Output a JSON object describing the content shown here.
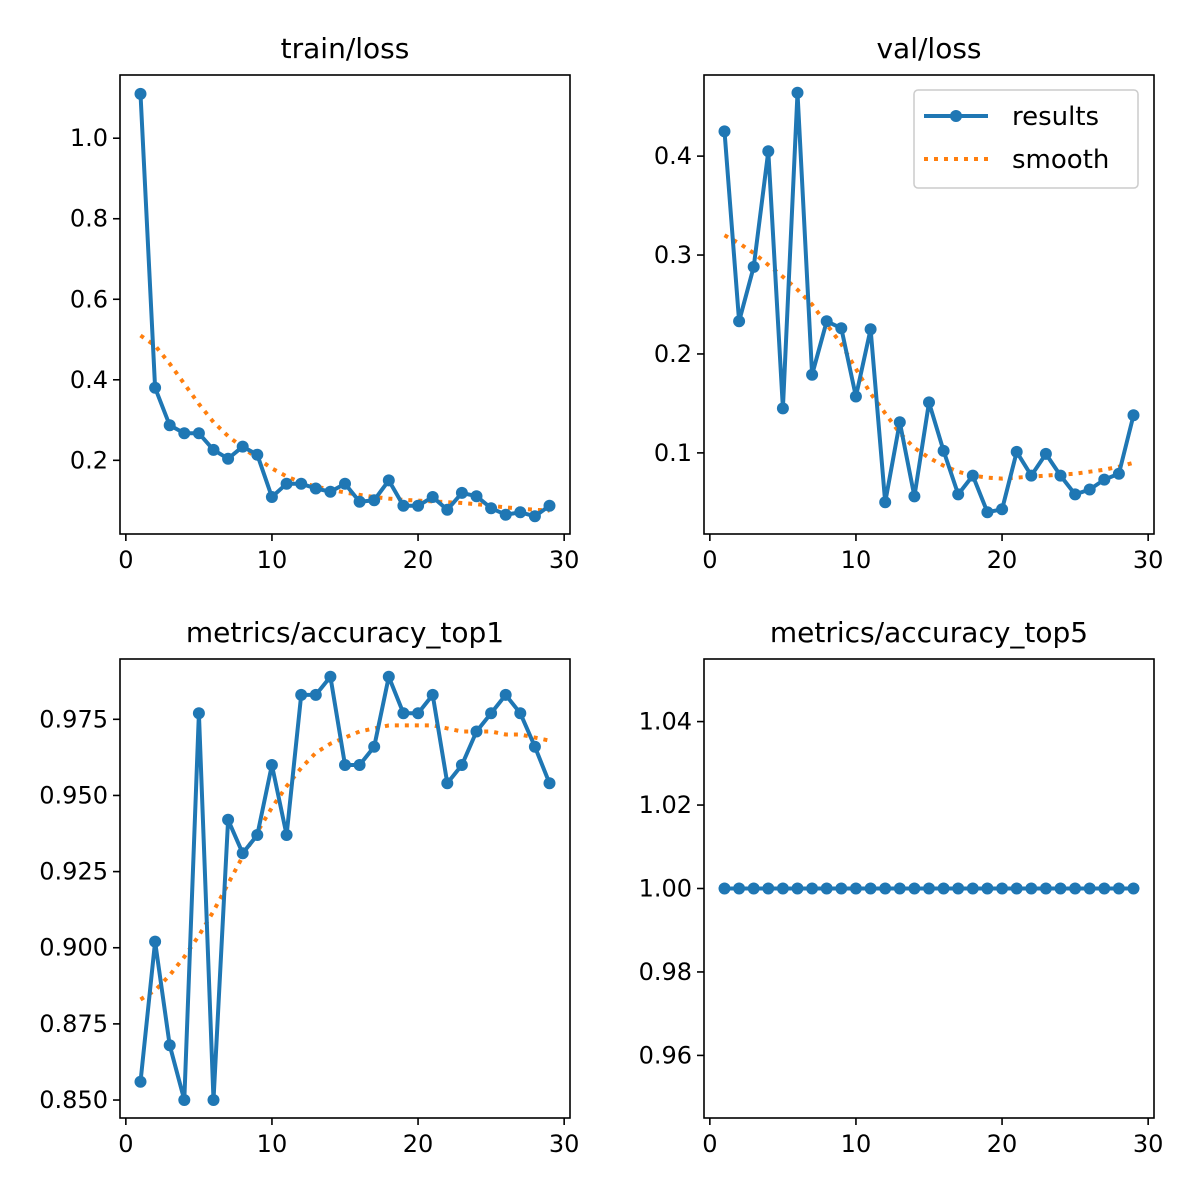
{
  "figure": {
    "colors": {
      "results": "#1f77b4",
      "smooth": "#ff7f0e",
      "axes": "#000000",
      "legend_frame": "#cccccc",
      "background": "#ffffff"
    }
  },
  "legend": {
    "location": "upper right of val/loss",
    "results_label": "results",
    "smooth_label": "smooth"
  },
  "chart_data": [
    {
      "type": "line",
      "title": "train/loss",
      "xlabel": "",
      "ylabel": "",
      "xlim": [
        -0.4,
        30.4
      ],
      "ylim": [
        0.017,
        1.157
      ],
      "xticks": [
        0,
        10,
        20,
        30
      ],
      "xtick_labels": [
        "0",
        "10",
        "20",
        "30"
      ],
      "yticks": [
        0.2,
        0.4,
        0.6,
        0.8,
        1.0
      ],
      "ytick_labels": [
        "0.2",
        "0.4",
        "0.6",
        "0.8",
        "1.0"
      ],
      "x": [
        1,
        2,
        3,
        4,
        5,
        6,
        7,
        8,
        9,
        10,
        11,
        12,
        13,
        14,
        15,
        16,
        17,
        18,
        19,
        20,
        21,
        22,
        23,
        24,
        25,
        26,
        27,
        28,
        29
      ],
      "series": [
        {
          "name": "results",
          "marker": "circle",
          "style": "solid",
          "values": [
            1.11,
            0.38,
            0.287,
            0.267,
            0.267,
            0.226,
            0.204,
            0.234,
            0.214,
            0.109,
            0.142,
            0.142,
            0.13,
            0.122,
            0.142,
            0.097,
            0.101,
            0.15,
            0.087,
            0.087,
            0.109,
            0.077,
            0.119,
            0.111,
            0.081,
            0.065,
            0.071,
            0.061,
            0.087
          ]
        },
        {
          "name": "smooth",
          "marker": "none",
          "style": "dotted",
          "values": [
            0.51,
            0.485,
            0.44,
            0.39,
            0.34,
            0.295,
            0.26,
            0.232,
            0.205,
            0.18,
            0.16,
            0.145,
            0.135,
            0.127,
            0.12,
            0.114,
            0.109,
            0.105,
            0.102,
            0.1,
            0.098,
            0.096,
            0.094,
            0.091,
            0.087,
            0.083,
            0.08,
            0.077,
            0.075
          ]
        }
      ]
    },
    {
      "type": "line",
      "title": "val/loss",
      "xlabel": "",
      "ylabel": "",
      "xlim": [
        -0.4,
        30.4
      ],
      "ylim": [
        0.018,
        0.482
      ],
      "xticks": [
        0,
        10,
        20,
        30
      ],
      "xtick_labels": [
        "0",
        "10",
        "20",
        "30"
      ],
      "yticks": [
        0.1,
        0.2,
        0.3,
        0.4
      ],
      "ytick_labels": [
        "0.1",
        "0.2",
        "0.3",
        "0.4"
      ],
      "legend": true,
      "x": [
        1,
        2,
        3,
        4,
        5,
        6,
        7,
        8,
        9,
        10,
        11,
        12,
        13,
        14,
        15,
        16,
        17,
        18,
        19,
        20,
        21,
        22,
        23,
        24,
        25,
        26,
        27,
        28,
        29
      ],
      "series": [
        {
          "name": "results",
          "marker": "circle",
          "style": "solid",
          "values": [
            0.425,
            0.233,
            0.288,
            0.405,
            0.145,
            0.464,
            0.179,
            0.233,
            0.226,
            0.157,
            0.225,
            0.05,
            0.131,
            0.056,
            0.151,
            0.102,
            0.058,
            0.077,
            0.04,
            0.043,
            0.101,
            0.077,
            0.099,
            0.077,
            0.058,
            0.063,
            0.073,
            0.079,
            0.138
          ]
        },
        {
          "name": "smooth",
          "marker": "none",
          "style": "dotted",
          "values": [
            0.32,
            0.312,
            0.302,
            0.29,
            0.278,
            0.265,
            0.25,
            0.23,
            0.21,
            0.185,
            0.16,
            0.14,
            0.12,
            0.105,
            0.095,
            0.087,
            0.081,
            0.077,
            0.075,
            0.074,
            0.075,
            0.076,
            0.077,
            0.078,
            0.079,
            0.081,
            0.083,
            0.086,
            0.09
          ]
        }
      ]
    },
    {
      "type": "line",
      "title": "metrics/accuracy_top1",
      "xlabel": "",
      "ylabel": "",
      "xlim": [
        -0.4,
        30.4
      ],
      "ylim": [
        0.8441,
        0.9948
      ],
      "xticks": [
        0,
        10,
        20,
        30
      ],
      "xtick_labels": [
        "0",
        "10",
        "20",
        "30"
      ],
      "yticks": [
        0.85,
        0.875,
        0.9,
        0.925,
        0.95,
        0.975
      ],
      "ytick_labels": [
        "0.850",
        "0.875",
        "0.900",
        "0.925",
        "0.950",
        "0.975"
      ],
      "x": [
        1,
        2,
        3,
        4,
        5,
        6,
        7,
        8,
        9,
        10,
        11,
        12,
        13,
        14,
        15,
        16,
        17,
        18,
        19,
        20,
        21,
        22,
        23,
        24,
        25,
        26,
        27,
        28,
        29
      ],
      "series": [
        {
          "name": "results",
          "marker": "circle",
          "style": "solid",
          "values": [
            0.856,
            0.902,
            0.868,
            0.85,
            0.977,
            0.85,
            0.942,
            0.931,
            0.937,
            0.96,
            0.937,
            0.983,
            0.983,
            0.989,
            0.96,
            0.96,
            0.966,
            0.989,
            0.977,
            0.977,
            0.983,
            0.954,
            0.96,
            0.971,
            0.977,
            0.983,
            0.977,
            0.966,
            0.954
          ]
        },
        {
          "name": "smooth",
          "marker": "none",
          "style": "dotted",
          "values": [
            0.883,
            0.886,
            0.891,
            0.897,
            0.904,
            0.912,
            0.921,
            0.93,
            0.938,
            0.946,
            0.953,
            0.959,
            0.964,
            0.967,
            0.969,
            0.971,
            0.972,
            0.973,
            0.973,
            0.973,
            0.973,
            0.972,
            0.971,
            0.971,
            0.971,
            0.97,
            0.97,
            0.969,
            0.968
          ]
        }
      ]
    },
    {
      "type": "line",
      "title": "metrics/accuracy_top5",
      "xlabel": "",
      "ylabel": "",
      "xlim": [
        -0.4,
        30.4
      ],
      "ylim": [
        0.945,
        1.055
      ],
      "xticks": [
        0,
        10,
        20,
        30
      ],
      "xtick_labels": [
        "0",
        "10",
        "20",
        "30"
      ],
      "yticks": [
        0.96,
        0.98,
        1.0,
        1.02,
        1.04
      ],
      "ytick_labels": [
        "0.96",
        "0.98",
        "1.00",
        "1.02",
        "1.04"
      ],
      "x": [
        1,
        2,
        3,
        4,
        5,
        6,
        7,
        8,
        9,
        10,
        11,
        12,
        13,
        14,
        15,
        16,
        17,
        18,
        19,
        20,
        21,
        22,
        23,
        24,
        25,
        26,
        27,
        28,
        29
      ],
      "series": [
        {
          "name": "results",
          "marker": "circle",
          "style": "solid",
          "values": [
            1,
            1,
            1,
            1,
            1,
            1,
            1,
            1,
            1,
            1,
            1,
            1,
            1,
            1,
            1,
            1,
            1,
            1,
            1,
            1,
            1,
            1,
            1,
            1,
            1,
            1,
            1,
            1,
            1
          ]
        },
        {
          "name": "smooth",
          "marker": "none",
          "style": "dotted",
          "values": [
            1,
            1,
            1,
            1,
            1,
            1,
            1,
            1,
            1,
            1,
            1,
            1,
            1,
            1,
            1,
            1,
            1,
            1,
            1,
            1,
            1,
            1,
            1,
            1,
            1,
            1,
            1,
            1,
            1
          ]
        }
      ]
    }
  ]
}
